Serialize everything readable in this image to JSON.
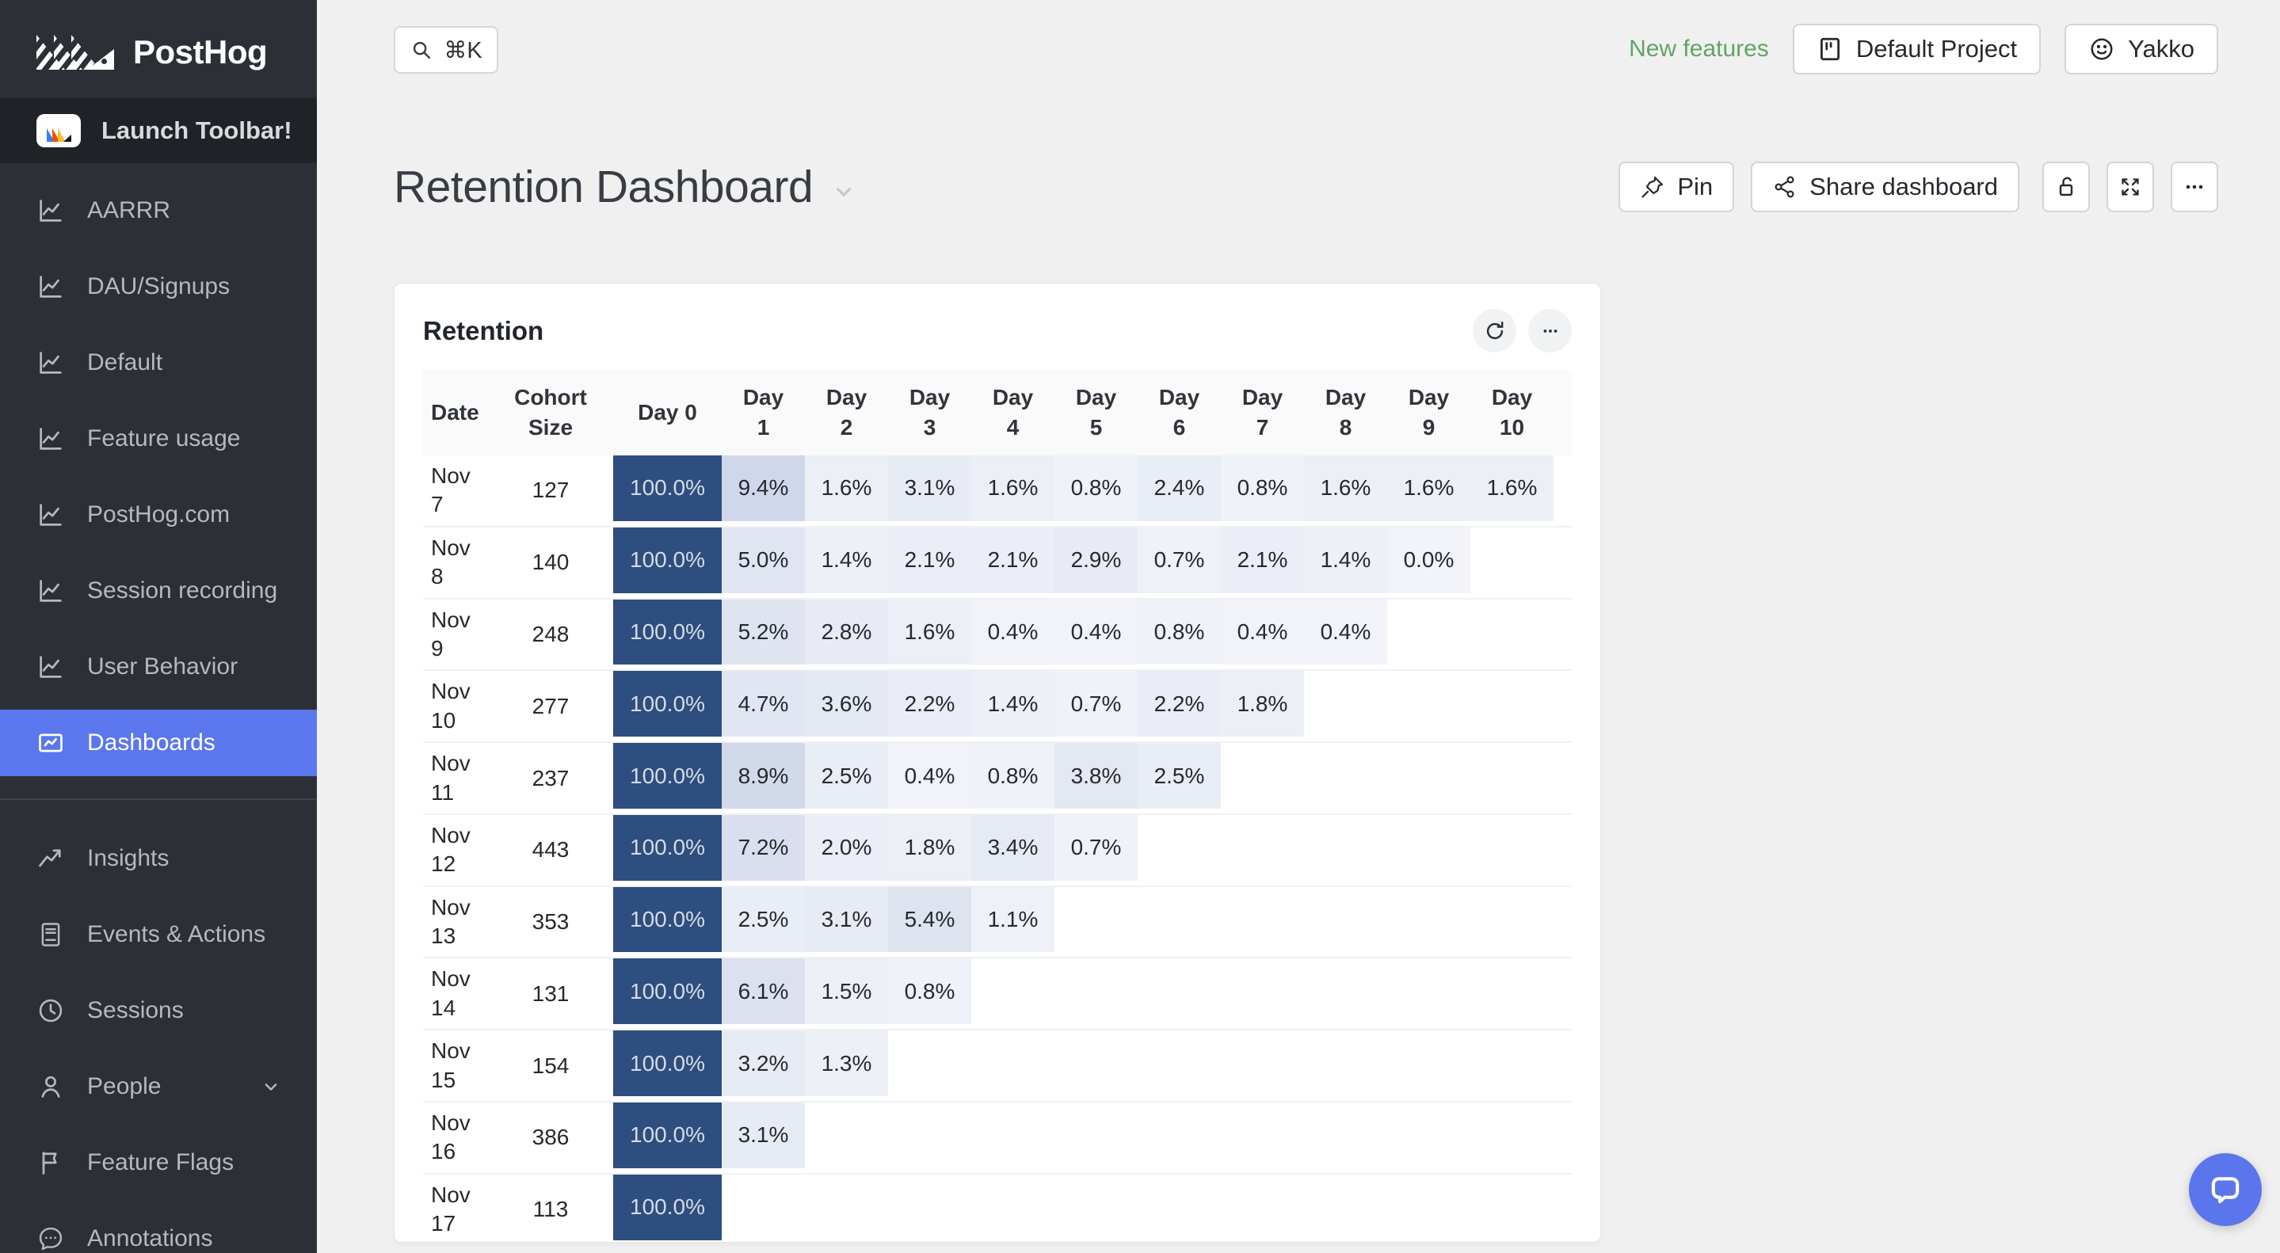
{
  "colors": {
    "accent": "#5b77ee",
    "sidebar_bg": "#2c3036",
    "day0_cell": "#2d4e7e",
    "cell_base_rgb": "42,75,160",
    "new_features_green": "#62a465",
    "page_bg": "#f0f0f1"
  },
  "sidebar": {
    "logo_text": "PostHog",
    "launch_toolbar_label": "Launch Toolbar!",
    "pinned_items": [
      {
        "label": "AARRR",
        "icon": "line-chart-icon",
        "active": false
      },
      {
        "label": "DAU/Signups",
        "icon": "line-chart-icon",
        "active": false
      },
      {
        "label": "Default",
        "icon": "line-chart-icon",
        "active": false
      },
      {
        "label": "Feature usage",
        "icon": "line-chart-icon",
        "active": false
      },
      {
        "label": "PostHog.com",
        "icon": "line-chart-icon",
        "active": false
      },
      {
        "label": "Session recording",
        "icon": "line-chart-icon",
        "active": false
      },
      {
        "label": "User Behavior",
        "icon": "line-chart-icon",
        "active": false
      },
      {
        "label": "Dashboards",
        "icon": "dashboard-icon",
        "active": true
      }
    ],
    "nav_items": [
      {
        "label": "Insights",
        "icon": "insights-icon",
        "chevron": false
      },
      {
        "label": "Events & Actions",
        "icon": "events-icon",
        "chevron": false
      },
      {
        "label": "Sessions",
        "icon": "clock-icon",
        "chevron": false
      },
      {
        "label": "People",
        "icon": "person-icon",
        "chevron": true
      },
      {
        "label": "Feature Flags",
        "icon": "flag-icon",
        "chevron": false
      },
      {
        "label": "Annotations",
        "icon": "annotation-icon",
        "chevron": false
      }
    ]
  },
  "topbar": {
    "search_shortcut": "⌘K",
    "new_features_label": "New features",
    "project_label": "Default Project",
    "user_label": "Yakko"
  },
  "header": {
    "title": "Retention Dashboard",
    "pin_label": "Pin",
    "share_label": "Share dashboard"
  },
  "card": {
    "title": "Retention"
  },
  "chart_data": {
    "type": "table",
    "title": "Retention",
    "columns": [
      "Date",
      "Cohort Size",
      "Day 0",
      "Day 1",
      "Day 2",
      "Day 3",
      "Day 4",
      "Day 5",
      "Day 6",
      "Day 7",
      "Day 8",
      "Day 9",
      "Day 10"
    ],
    "rows": [
      {
        "date": "Nov 7",
        "size": 127,
        "values": [
          100.0,
          9.4,
          1.6,
          3.1,
          1.6,
          0.8,
          2.4,
          0.8,
          1.6,
          1.6,
          1.6
        ]
      },
      {
        "date": "Nov 8",
        "size": 140,
        "values": [
          100.0,
          5.0,
          1.4,
          2.1,
          2.1,
          2.9,
          0.7,
          2.1,
          1.4,
          0.0
        ]
      },
      {
        "date": "Nov 9",
        "size": 248,
        "values": [
          100.0,
          5.2,
          2.8,
          1.6,
          0.4,
          0.4,
          0.8,
          0.4,
          0.4
        ]
      },
      {
        "date": "Nov 10",
        "size": 277,
        "values": [
          100.0,
          4.7,
          3.6,
          2.2,
          1.4,
          0.7,
          2.2,
          1.8
        ]
      },
      {
        "date": "Nov 11",
        "size": 237,
        "values": [
          100.0,
          8.9,
          2.5,
          0.4,
          0.8,
          3.8,
          2.5
        ]
      },
      {
        "date": "Nov 12",
        "size": 443,
        "values": [
          100.0,
          7.2,
          2.0,
          1.8,
          3.4,
          0.7
        ]
      },
      {
        "date": "Nov 13",
        "size": 353,
        "values": [
          100.0,
          2.5,
          3.1,
          5.4,
          1.1
        ]
      },
      {
        "date": "Nov 14",
        "size": 131,
        "values": [
          100.0,
          6.1,
          1.5,
          0.8
        ]
      },
      {
        "date": "Nov 15",
        "size": 154,
        "values": [
          100.0,
          3.2,
          1.3
        ]
      },
      {
        "date": "Nov 16",
        "size": 386,
        "values": [
          100.0,
          3.1
        ]
      },
      {
        "date": "Nov 17",
        "size": 113,
        "values": [
          100.0
        ]
      }
    ]
  }
}
